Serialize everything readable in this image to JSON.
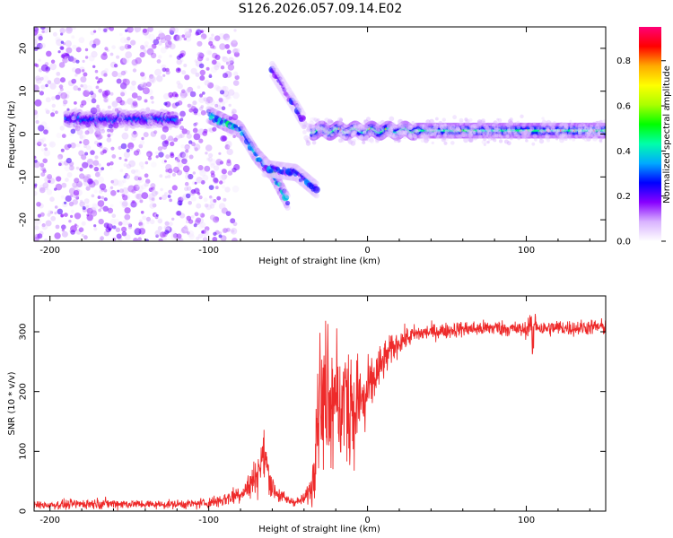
{
  "title": "S126.2026.057.09.14.E02",
  "chart_data": [
    {
      "type": "heatmap",
      "name": "spectrogram",
      "xlabel": "Height of straight line (km)",
      "ylabel": "Frequency (Hz)",
      "xlim": [
        -210,
        150
      ],
      "ylim": [
        -25,
        25
      ],
      "xticks": [
        -200,
        -100,
        0,
        100
      ],
      "yticks": [
        -20,
        -10,
        0,
        10,
        20
      ],
      "colorbar": {
        "label": "Normalized spectral amplitude",
        "range": [
          0,
          0.95
        ],
        "ticks": [
          "0.0",
          "0.2",
          "0.4",
          "0.6",
          "0.8"
        ],
        "tick_values": [
          0.0,
          0.2,
          0.4,
          0.6,
          0.8
        ],
        "colors": [
          "#ffffff",
          "#d9b3ff",
          "#8800ff",
          "#0000ff",
          "#00aaff",
          "#00ffaa",
          "#00ff00",
          "#aaff00",
          "#ffff00",
          "#ffaa00",
          "#ff0000",
          "#ff0077"
        ]
      },
      "features": [
        {
          "name": "carrier-line",
          "x_range": [
            -35,
            150
          ],
          "freq": 0.8,
          "amplitude": 0.5
        },
        {
          "name": "early-streak",
          "x_range": [
            -190,
            -120
          ],
          "freq": 3.5,
          "amplitude": 0.35
        },
        {
          "name": "descending-branch",
          "points": [
            [
              -100,
              4.5
            ],
            [
              -80,
              1
            ],
            [
              -70,
              -5
            ],
            [
              -60,
              -9
            ],
            [
              -50,
              -16
            ]
          ],
          "amplitude": 0.35
        },
        {
          "name": "secondary-branch",
          "points": [
            [
              -65,
              -8
            ],
            [
              -45,
              -9
            ],
            [
              -32,
              -13
            ]
          ],
          "amplitude": 0.25
        },
        {
          "name": "upper-branch",
          "points": [
            [
              -60,
              15
            ],
            [
              -48,
              8
            ],
            [
              -40,
              3
            ]
          ],
          "amplitude": 0.2
        },
        {
          "name": "noise-background",
          "x_range": [
            -210,
            -90
          ],
          "freq_range": [
            -25,
            25
          ],
          "amplitude": 0.1
        }
      ]
    },
    {
      "type": "line",
      "name": "snr",
      "xlabel": "Height of straight line (km)",
      "ylabel": "SNR (10 * v/v)",
      "xlim": [
        -210,
        150
      ],
      "ylim": [
        0,
        360
      ],
      "xticks": [
        -200,
        -100,
        0,
        100
      ],
      "yticks": [
        0,
        100,
        200,
        300
      ],
      "color": "#ee2a2a",
      "series": [
        {
          "name": "SNR",
          "x": [
            -210,
            -190,
            -170,
            -150,
            -130,
            -110,
            -100,
            -90,
            -80,
            -75,
            -70,
            -65,
            -62,
            -60,
            -55,
            -50,
            -45,
            -40,
            -35,
            -32,
            -30,
            -28,
            -25,
            -22,
            -20,
            -18,
            -15,
            -12,
            -10,
            -8,
            -5,
            -2,
            0,
            5,
            10,
            15,
            20,
            25,
            30,
            40,
            50,
            60,
            70,
            80,
            90,
            100,
            103,
            104,
            105,
            110,
            120,
            130,
            140,
            150
          ],
          "y": [
            10,
            11,
            13,
            12,
            11,
            12,
            14,
            20,
            30,
            40,
            60,
            95,
            60,
            40,
            25,
            18,
            15,
            20,
            40,
            150,
            210,
            160,
            240,
            190,
            255,
            140,
            210,
            170,
            230,
            170,
            200,
            180,
            200,
            225,
            250,
            270,
            283,
            290,
            296,
            300,
            302,
            305,
            305,
            307,
            305,
            303,
            320,
            255,
            315,
            305,
            307,
            306,
            308,
            308
          ],
          "noise": [
            6,
            7,
            8,
            7,
            6,
            7,
            8,
            12,
            15,
            20,
            30,
            35,
            25,
            18,
            12,
            8,
            6,
            8,
            25,
            90,
            100,
            100,
            110,
            100,
            100,
            90,
            90,
            85,
            90,
            80,
            60,
            50,
            45,
            40,
            30,
            22,
            18,
            16,
            14,
            12,
            12,
            12,
            12,
            12,
            12,
            12,
            20,
            30,
            20,
            12,
            12,
            12,
            12,
            12
          ]
        }
      ]
    }
  ]
}
